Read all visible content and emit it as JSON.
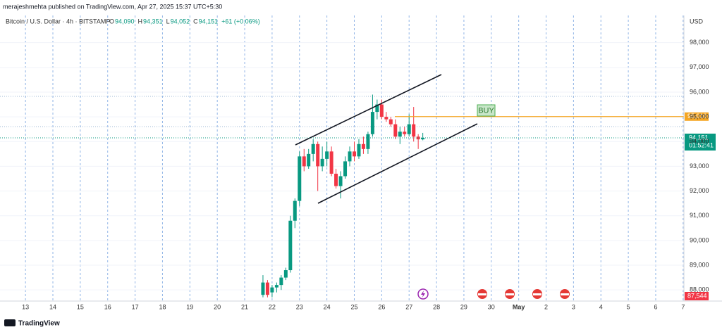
{
  "header": {
    "publisher": "merajeshmehta published on TradingView.com, Apr 27, 2025 15:37 UTC+5:30",
    "footer": "TradingView"
  },
  "chart_data": {
    "type": "candlestick",
    "symbol": "Bitcoin / U.S. Dollar · 4h · BITSTAMP",
    "ohlc_legend": [
      "O",
      "94,090",
      "H",
      "94,351",
      "L",
      "94,052",
      "C",
      "94,151",
      "+61 (+0.06%)"
    ],
    "currency": "USD",
    "up_color": "#089981",
    "down_color": "#f23645",
    "x": [
      21.667,
      21.833,
      22.0,
      22.167,
      22.333,
      22.5,
      22.667,
      22.833,
      23.0,
      23.167,
      23.333,
      23.5,
      23.667,
      23.833,
      24.0,
      24.167,
      24.333,
      24.5,
      24.667,
      24.833,
      25.0,
      25.167,
      25.333,
      25.5,
      25.667,
      25.833,
      26.0,
      26.167,
      26.333,
      26.5,
      26.667,
      26.833,
      27.0,
      27.167,
      27.333,
      27.5
    ],
    "open": [
      87800,
      88300,
      87900,
      88100,
      88200,
      88500,
      88800,
      90800,
      91600,
      93400,
      93000,
      93500,
      93900,
      93000,
      93300,
      93600,
      92700,
      92200,
      92600,
      93200,
      93600,
      93400,
      93900,
      93700,
      94300,
      95200,
      95500,
      95000,
      94900,
      94700,
      94200,
      94400,
      94300,
      94700,
      94200,
      94090
    ],
    "high": [
      88600,
      88400,
      88200,
      88300,
      88600,
      88900,
      91000,
      91700,
      93600,
      93700,
      93700,
      94100,
      94000,
      93800,
      94000,
      93800,
      92900,
      92800,
      93400,
      93800,
      94000,
      94100,
      94200,
      94400,
      95900,
      95700,
      95700,
      95200,
      95000,
      94900,
      94600,
      94600,
      95100,
      95400,
      94300,
      94351
    ],
    "low": [
      87700,
      87700,
      87700,
      87900,
      88000,
      88400,
      88700,
      90500,
      91400,
      92800,
      92900,
      93200,
      92000,
      92800,
      93000,
      92600,
      92100,
      91700,
      92500,
      93000,
      93200,
      93300,
      93500,
      93500,
      94200,
      94900,
      94900,
      94800,
      94600,
      94100,
      93900,
      94200,
      94200,
      94000,
      93700,
      94052
    ],
    "close": [
      88300,
      87800,
      88100,
      88200,
      88500,
      88800,
      90800,
      91600,
      93400,
      93000,
      93500,
      93900,
      93000,
      93300,
      93600,
      92700,
      92200,
      92600,
      93200,
      93600,
      93400,
      93900,
      93700,
      94300,
      95200,
      95500,
      95000,
      94900,
      94700,
      94200,
      94400,
      94300,
      94700,
      94200,
      94090,
      94151
    ],
    "xlim": [
      12.07,
      37.03
    ],
    "xticks": [
      13,
      14,
      15,
      16,
      17,
      18,
      19,
      20,
      21,
      22,
      23,
      24,
      25,
      26,
      27,
      28,
      29,
      30,
      {
        "value": 31,
        "label": "May"
      },
      {
        "value": 32,
        "label": "2"
      },
      {
        "value": 33,
        "label": "3"
      },
      {
        "value": 34,
        "label": "4"
      },
      {
        "value": 35,
        "label": "5"
      },
      {
        "value": 36,
        "label": "6"
      },
      {
        "value": 37,
        "label": "7"
      }
    ],
    "ylim": [
      87550,
      99100
    ],
    "yticks": [
      {
        "value": 88000,
        "label": "88,000"
      },
      {
        "value": 89000,
        "label": "89,000"
      },
      {
        "value": 90000,
        "label": "90,000"
      },
      {
        "value": 91000,
        "label": "91,000"
      },
      {
        "value": 92000,
        "label": "92,000"
      },
      {
        "value": 93000,
        "label": "93,000"
      },
      {
        "value": 94000,
        "label": "94,000"
      },
      {
        "value": 95000,
        "label": "95,000"
      },
      {
        "value": 96000,
        "label": "96,000"
      },
      {
        "value": 97000,
        "label": "97,000"
      },
      {
        "value": 98000,
        "label": "98,000"
      }
    ],
    "annotation": "BUY",
    "buy_level": {
      "value": 95010,
      "label": "95,010"
    },
    "last_price": {
      "value": 94151,
      "label": "94,151"
    },
    "countdown": "01:52:41",
    "low_marker": {
      "value": 87544,
      "label": "87,544"
    },
    "grid": true
  }
}
